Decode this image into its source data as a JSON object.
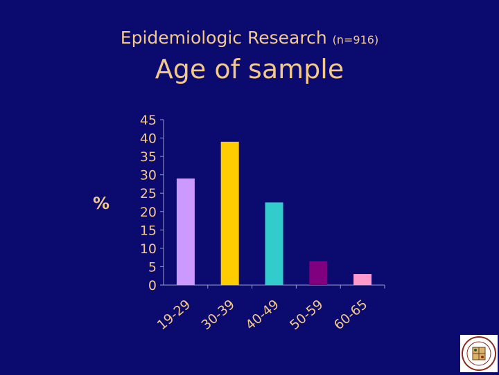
{
  "slide": {
    "heading": "Epidemiologic Research",
    "sample_size": "(n=916)",
    "title": "Age of sample"
  },
  "chart_data": {
    "type": "bar",
    "categories": [
      "19-29",
      "30-39",
      "40-49",
      "50-59",
      "60-65"
    ],
    "values": [
      29,
      39,
      22.5,
      6.5,
      3
    ],
    "colors": [
      "#cc99ff",
      "#ffcc00",
      "#33cccc",
      "#800080",
      "#ff99cc"
    ],
    "ylabel": "%",
    "ylim": [
      0,
      45
    ],
    "yticks": [
      0,
      5,
      10,
      15,
      20,
      25,
      30,
      35,
      40,
      45
    ],
    "grid": false,
    "legend": "none"
  },
  "logo": {
    "icon": "city-seal-icon"
  }
}
